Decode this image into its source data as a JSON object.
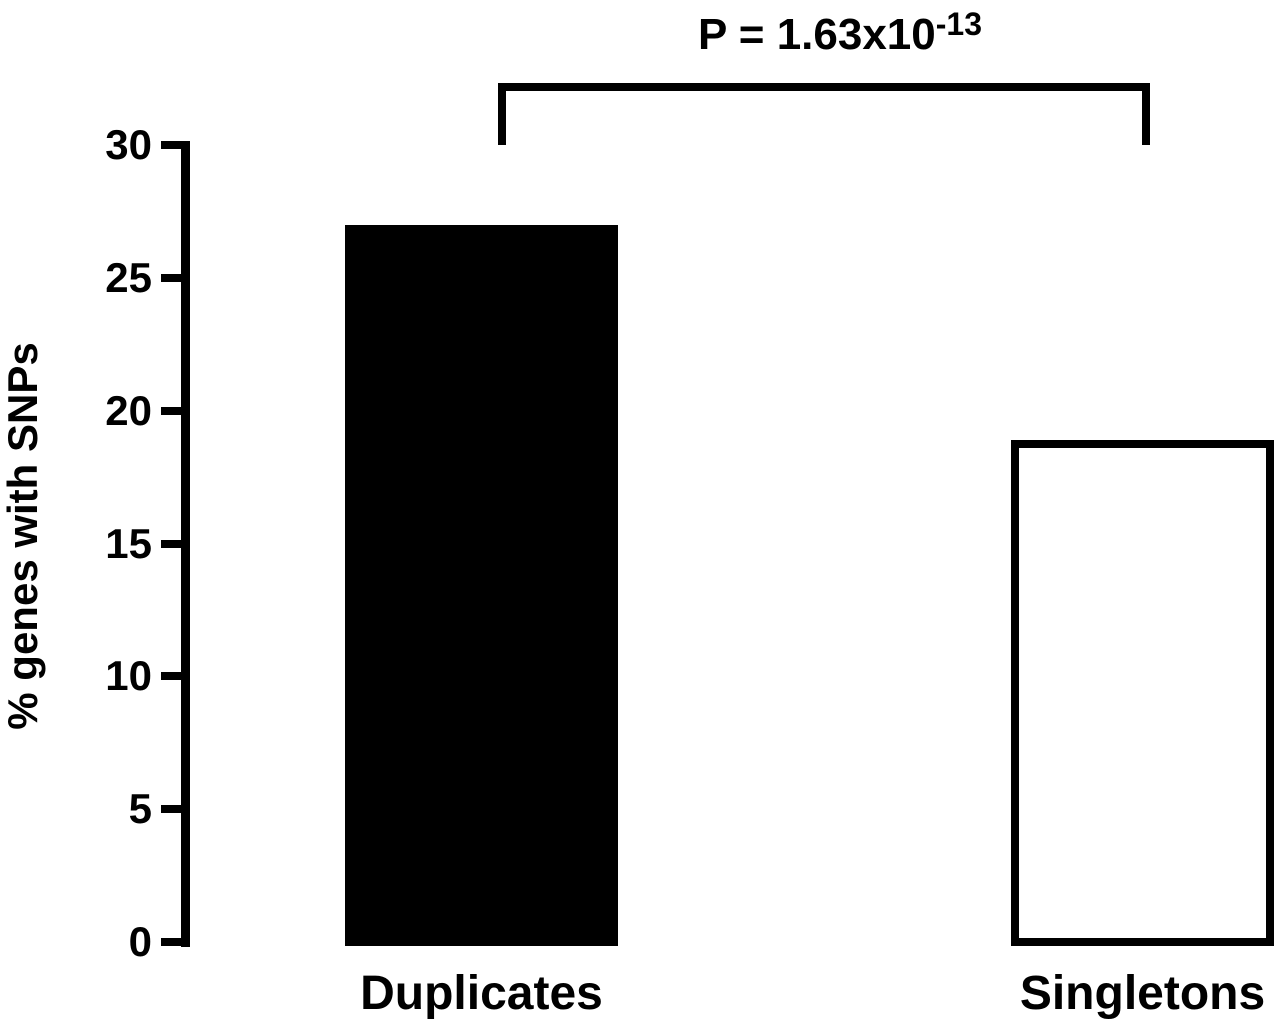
{
  "chart_data": {
    "type": "bar",
    "title": "",
    "categories": [
      "Duplicates",
      "Singletons"
    ],
    "values": [
      27.0,
      18.9
    ],
    "bar_colors": [
      "#000000",
      "#ffffff"
    ],
    "xlabel": "",
    "ylabel": "% genes with SNPs",
    "ylim": [
      0,
      30
    ],
    "yticks": [
      "0",
      "5",
      "10",
      "15",
      "20",
      "25",
      "30"
    ],
    "grid": false,
    "legend": false,
    "annotation": {
      "p_value_base": "P = 1.63x10",
      "p_value_exponent": "-13",
      "connects": [
        "Duplicates",
        "Singletons"
      ]
    },
    "colors": {
      "foreground": "#000000",
      "background": "#ffffff"
    }
  }
}
